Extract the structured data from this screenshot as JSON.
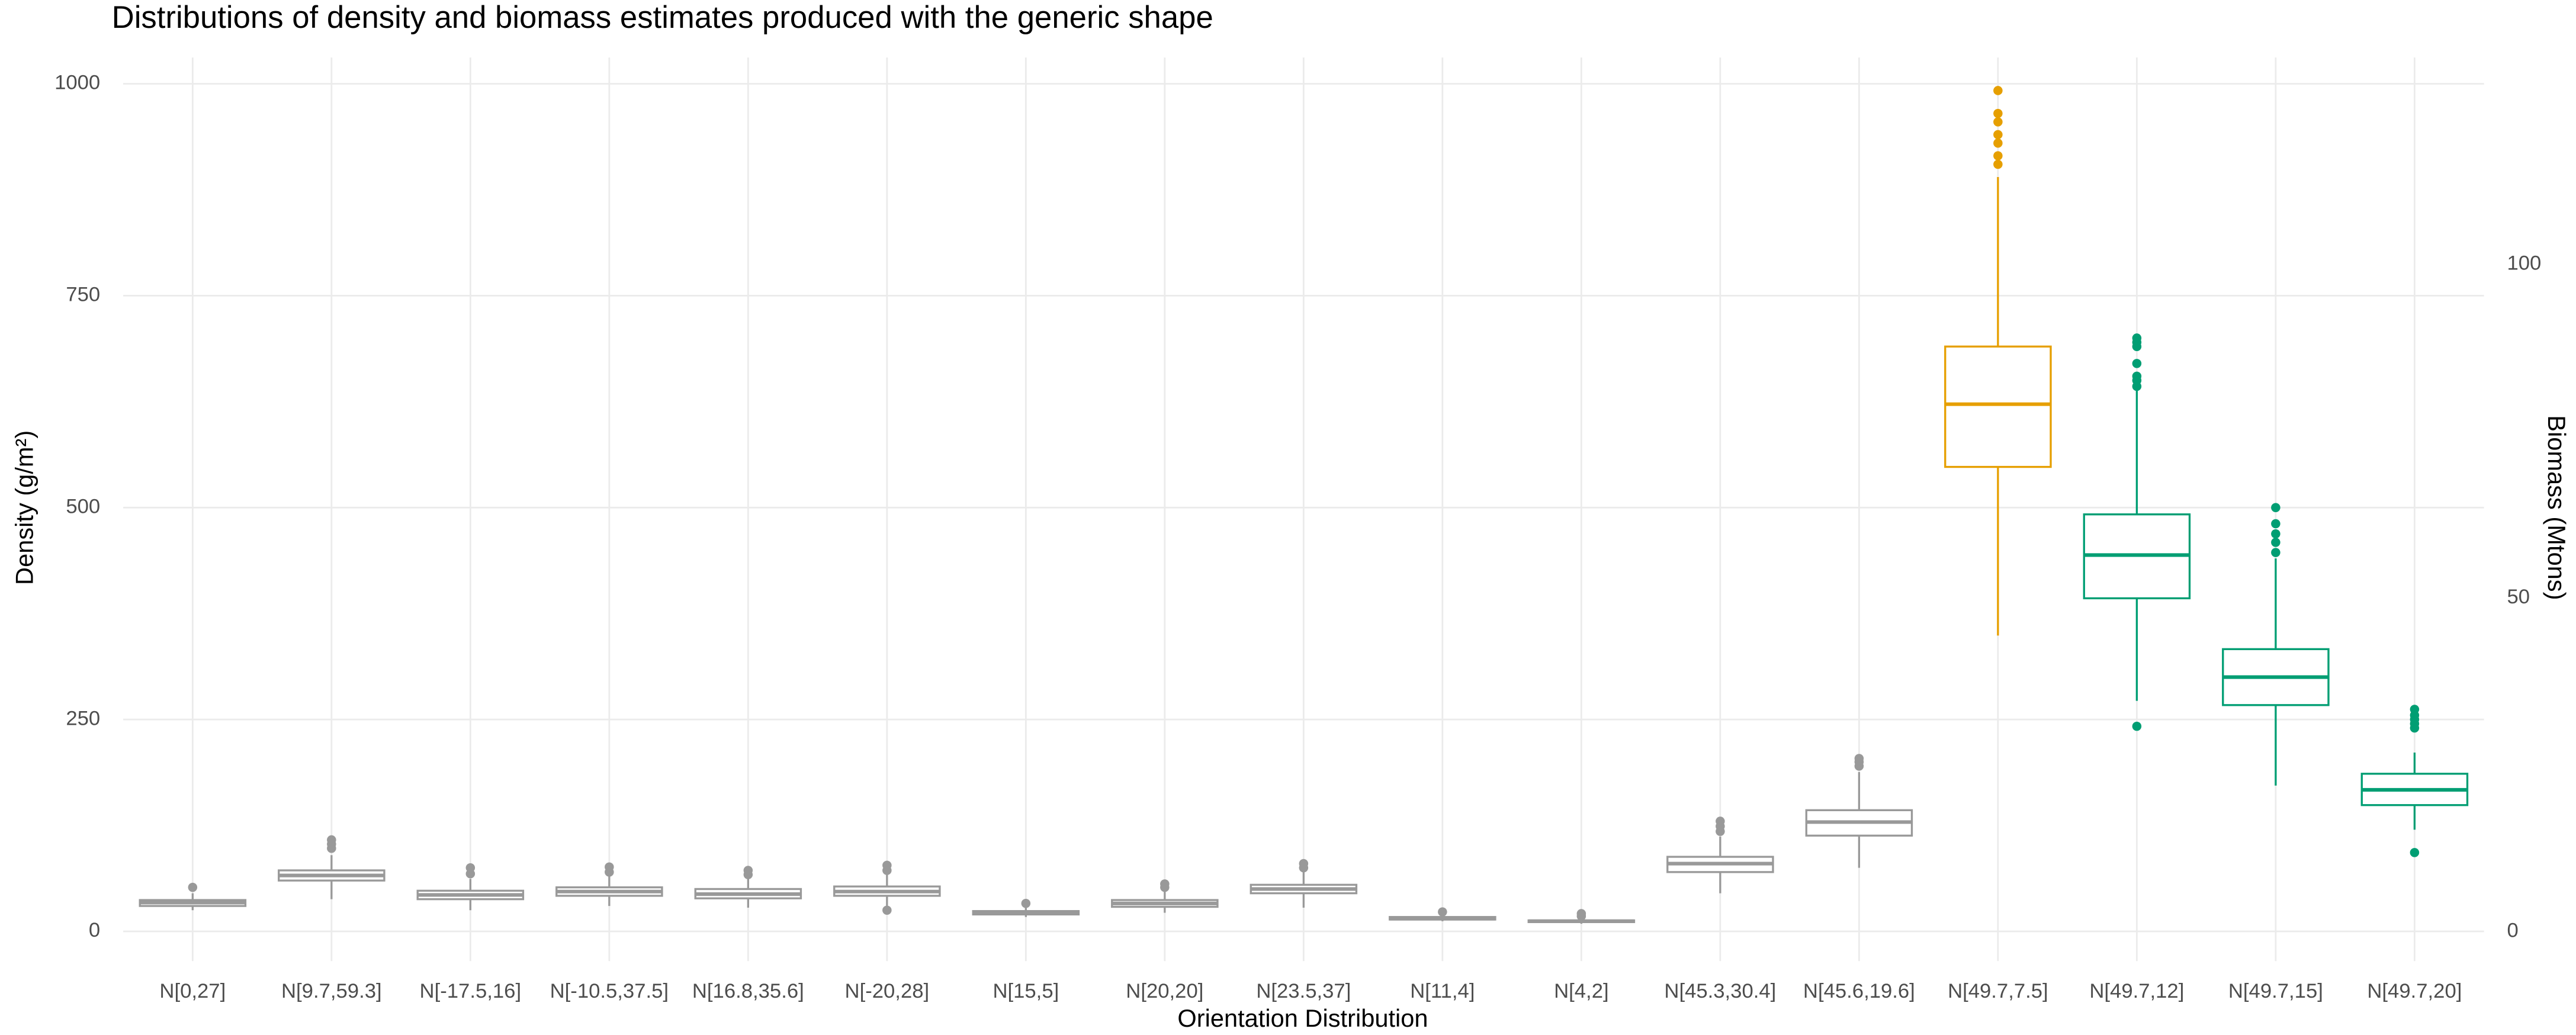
{
  "chart_data": {
    "type": "boxplot",
    "title": "Distributions of density and biomass estimates produced with the generic shape",
    "x_label": "Orientation Distribution",
    "y_label": "Density (g/m²)",
    "y2_label": "Biomass (Mtons)",
    "categories": [
      "N[0,27]",
      "N[9.7,59.3]",
      "N[-17.5,16]",
      "N[-10.5,37.5]",
      "N[16.8,35.6]",
      "N[-20,28]",
      "N[15,5]",
      "N[20,20]",
      "N[23.5,37]",
      "N[11,4]",
      "N[4,2]",
      "N[45.3,30.4]",
      "N[45.6,19.6]",
      "N[49.7,7.5]",
      "N[49.7,12]",
      "N[49.7,15]",
      "N[49.7,20]"
    ],
    "boxes": [
      {
        "low": 25,
        "q1": 30,
        "median": 34,
        "q3": 37,
        "high": 45,
        "outliers": [
          52
        ],
        "color": "#999999"
      },
      {
        "low": 38,
        "q1": 60,
        "median": 66,
        "q3": 72,
        "high": 90,
        "outliers": [
          98,
          103,
          108
        ],
        "color": "#999999"
      },
      {
        "low": 25,
        "q1": 38,
        "median": 43,
        "q3": 48,
        "high": 62,
        "outliers": [
          68,
          75
        ],
        "color": "#999999"
      },
      {
        "low": 30,
        "q1": 42,
        "median": 47,
        "q3": 52,
        "high": 65,
        "outliers": [
          70,
          76
        ],
        "color": "#999999"
      },
      {
        "low": 28,
        "q1": 39,
        "median": 44,
        "q3": 50,
        "high": 62,
        "outliers": [
          67,
          72
        ],
        "color": "#999999"
      },
      {
        "low": 30,
        "q1": 42,
        "median": 47,
        "q3": 53,
        "high": 68,
        "outliers": [
          25,
          72,
          78
        ],
        "color": "#999999"
      },
      {
        "low": 17,
        "q1": 20,
        "median": 22,
        "q3": 24,
        "high": 28,
        "outliers": [
          33
        ],
        "color": "#999999"
      },
      {
        "low": 22,
        "q1": 29,
        "median": 33,
        "q3": 37,
        "high": 47,
        "outliers": [
          52,
          56
        ],
        "color": "#999999"
      },
      {
        "low": 28,
        "q1": 45,
        "median": 50,
        "q3": 55,
        "high": 70,
        "outliers": [
          75,
          80
        ],
        "color": "#999999"
      },
      {
        "low": 12,
        "q1": 14,
        "median": 15,
        "q3": 17,
        "high": 20,
        "outliers": [
          23
        ],
        "color": "#999999"
      },
      {
        "low": 9,
        "q1": 11,
        "median": 12,
        "q3": 13,
        "high": 15,
        "outliers": [
          18,
          21
        ],
        "color": "#999999"
      },
      {
        "low": 45,
        "q1": 70,
        "median": 80,
        "q3": 88,
        "high": 112,
        "outliers": [
          118,
          124,
          130
        ],
        "color": "#999999"
      },
      {
        "low": 75,
        "q1": 113,
        "median": 129,
        "q3": 143,
        "high": 188,
        "outliers": [
          195,
          200,
          204
        ],
        "color": "#999999"
      },
      {
        "low": 349,
        "q1": 548,
        "median": 622,
        "q3": 690,
        "high": 890,
        "outliers": [
          905,
          915,
          930,
          940,
          955,
          965,
          992
        ],
        "color": "#e69f00"
      },
      {
        "low": 272,
        "q1": 393,
        "median": 444,
        "q3": 492,
        "high": 638,
        "outliers": [
          242,
          643,
          650,
          655,
          670,
          690,
          695,
          700
        ],
        "color": "#009e73"
      },
      {
        "low": 172,
        "q1": 267,
        "median": 300,
        "q3": 333,
        "high": 440,
        "outliers": [
          447,
          459,
          469,
          481,
          500
        ],
        "color": "#009e73"
      },
      {
        "low": 120,
        "q1": 149,
        "median": 167,
        "q3": 186,
        "high": 211,
        "outliers": [
          93,
          240,
          245,
          250,
          255,
          262
        ],
        "color": "#009e73"
      }
    ],
    "ylim": [
      -35,
      1031
    ],
    "yticks": [
      0,
      250,
      500,
      750,
      1000
    ],
    "y2lim": [
      -4.4,
      131
    ],
    "y2ticks": [
      0,
      50,
      100
    ],
    "grid": true
  }
}
